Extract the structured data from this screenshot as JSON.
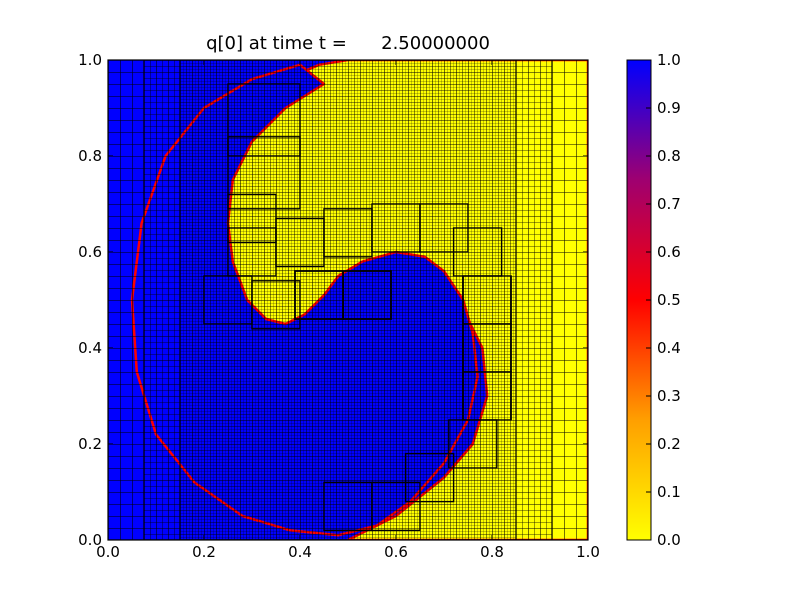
{
  "chart_data": {
    "type": "heatmap",
    "title": "q[0] at time t =      2.50000000",
    "xlabel": "",
    "ylabel": "",
    "xlim": [
      0.0,
      1.0
    ],
    "ylim": [
      0.0,
      1.0
    ],
    "xticks": [
      "0.0",
      "0.2",
      "0.4",
      "0.6",
      "0.8",
      "1.0"
    ],
    "yticks": [
      "0.0",
      "0.2",
      "0.4",
      "0.6",
      "0.8",
      "1.0"
    ],
    "colorbar": {
      "range": [
        0.0,
        1.0
      ],
      "ticks": [
        "0.0",
        "0.1",
        "0.2",
        "0.3",
        "0.4",
        "0.5",
        "0.6",
        "0.7",
        "0.8",
        "0.9",
        "1.0"
      ],
      "colors": [
        {
          "value": 0.0,
          "color": "#ffff00"
        },
        {
          "value": 0.25,
          "color": "#ff9f00"
        },
        {
          "value": 0.5,
          "color": "#ff0000"
        },
        {
          "value": 0.75,
          "color": "#9f0070"
        },
        {
          "value": 1.0,
          "color": "#0000ff"
        }
      ]
    },
    "field": {
      "background_value": 1.0,
      "regions": [
        {
          "name": "right-yellow-region",
          "value": 0.0,
          "points": [
            [
              0.5,
              1.0
            ],
            [
              1.0,
              1.0
            ],
            [
              1.0,
              0.0
            ],
            [
              0.5,
              0.0
            ],
            [
              0.6,
              0.05
            ],
            [
              0.7,
              0.13
            ],
            [
              0.76,
              0.2
            ],
            [
              0.79,
              0.3
            ],
            [
              0.78,
              0.4
            ],
            [
              0.74,
              0.48
            ],
            [
              0.68,
              0.55
            ],
            [
              0.62,
              0.57
            ],
            [
              0.55,
              0.55
            ],
            [
              0.5,
              0.51
            ],
            [
              0.47,
              0.46
            ],
            [
              0.45,
              0.43
            ],
            [
              0.43,
              0.41
            ],
            [
              0.4,
              0.4
            ],
            [
              0.37,
              0.39
            ],
            [
              0.32,
              0.4
            ],
            [
              0.27,
              0.44
            ],
            [
              0.23,
              0.51
            ],
            [
              0.21,
              0.58
            ],
            [
              0.2,
              0.66
            ],
            [
              0.21,
              0.74
            ],
            [
              0.23,
              0.81
            ],
            [
              0.26,
              0.87
            ],
            [
              0.31,
              0.92
            ],
            [
              0.37,
              0.96
            ],
            [
              0.44,
              0.99
            ]
          ]
        },
        {
          "name": "inner-blue-region",
          "value": 1.0,
          "points": [
            [
              0.45,
              0.95
            ],
            [
              0.37,
              0.9
            ],
            [
              0.3,
              0.83
            ],
            [
              0.26,
              0.75
            ],
            [
              0.25,
              0.66
            ],
            [
              0.26,
              0.58
            ],
            [
              0.29,
              0.5
            ],
            [
              0.33,
              0.46
            ],
            [
              0.37,
              0.45
            ],
            [
              0.41,
              0.47
            ],
            [
              0.45,
              0.51
            ],
            [
              0.48,
              0.55
            ],
            [
              0.53,
              0.58
            ],
            [
              0.6,
              0.6
            ],
            [
              0.66,
              0.59
            ],
            [
              0.7,
              0.56
            ],
            [
              0.74,
              0.5
            ],
            [
              0.76,
              0.43
            ],
            [
              0.77,
              0.34
            ],
            [
              0.75,
              0.25
            ],
            [
              0.7,
              0.16
            ],
            [
              0.63,
              0.08
            ],
            [
              0.56,
              0.03
            ],
            [
              0.48,
              0.01
            ],
            [
              0.38,
              0.02
            ],
            [
              0.28,
              0.05
            ],
            [
              0.18,
              0.12
            ],
            [
              0.1,
              0.22
            ],
            [
              0.06,
              0.35
            ],
            [
              0.05,
              0.5
            ],
            [
              0.07,
              0.66
            ],
            [
              0.12,
              0.8
            ],
            [
              0.2,
              0.9
            ],
            [
              0.3,
              0.96
            ],
            [
              0.4,
              0.99
            ]
          ]
        }
      ]
    },
    "amr_patches": [
      {
        "level": 1,
        "x": [
          0.0,
          1.0
        ],
        "y": [
          0.0,
          1.0
        ],
        "dx": 0.025
      },
      {
        "level": 2,
        "x": [
          0.075,
          0.925
        ],
        "y": [
          0.0,
          1.0
        ],
        "dx": 0.0125
      },
      {
        "level": 3,
        "x": [
          0.15,
          0.85
        ],
        "y": [
          0.0,
          1.0
        ],
        "dx": 0.00625
      }
    ],
    "coarse_blocks": [
      [
        0.25,
        0.8,
        0.15,
        0.15
      ],
      [
        0.25,
        0.69,
        0.15,
        0.15
      ],
      [
        0.25,
        0.62,
        0.1,
        0.1
      ],
      [
        0.25,
        0.55,
        0.1,
        0.1
      ],
      [
        0.39,
        0.46,
        0.1,
        0.1
      ],
      [
        0.49,
        0.46,
        0.1,
        0.1
      ],
      [
        0.35,
        0.57,
        0.1,
        0.1
      ],
      [
        0.45,
        0.59,
        0.1,
        0.1
      ],
      [
        0.55,
        0.6,
        0.1,
        0.1
      ],
      [
        0.65,
        0.6,
        0.1,
        0.1
      ],
      [
        0.72,
        0.55,
        0.1,
        0.1
      ],
      [
        0.74,
        0.45,
        0.1,
        0.1
      ],
      [
        0.74,
        0.35,
        0.1,
        0.1
      ],
      [
        0.74,
        0.25,
        0.1,
        0.1
      ],
      [
        0.71,
        0.15,
        0.1,
        0.1
      ],
      [
        0.62,
        0.08,
        0.1,
        0.1
      ],
      [
        0.55,
        0.02,
        0.1,
        0.1
      ],
      [
        0.45,
        0.02,
        0.1,
        0.1
      ],
      [
        0.3,
        0.44,
        0.1,
        0.1
      ],
      [
        0.2,
        0.45,
        0.1,
        0.1
      ]
    ]
  }
}
